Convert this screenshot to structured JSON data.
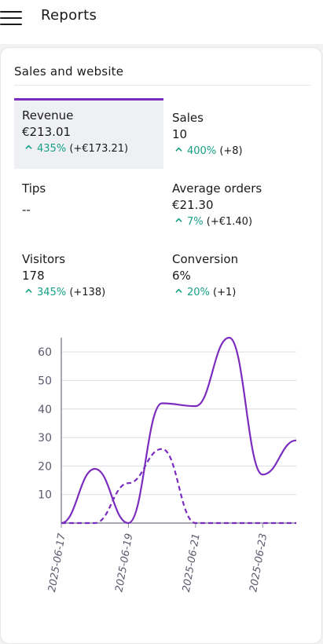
{
  "header": {
    "title": "Reports"
  },
  "card": {
    "title": "Sales and website"
  },
  "kpis": [
    {
      "label": "Revenue",
      "value": "€213.01",
      "change_pct": "435%",
      "change_abs": "(+€173.21)",
      "selected": true
    },
    {
      "label": "Sales",
      "value": "10",
      "change_pct": "400%",
      "change_abs": "(+8)",
      "selected": false
    },
    {
      "label": "Tips",
      "value": "--",
      "change_pct": "",
      "change_abs": "",
      "selected": false
    },
    {
      "label": "Average orders",
      "value": "€21.30",
      "change_pct": "7%",
      "change_abs": "(+€1.40)",
      "selected": false
    },
    {
      "label": "Visitors",
      "value": "178",
      "change_pct": "345%",
      "change_abs": "(+138)",
      "selected": false
    },
    {
      "label": "Conversion",
      "value": "6%",
      "change_pct": "20%",
      "change_abs": "(+1)",
      "selected": false
    }
  ],
  "colors": {
    "accent": "#7b2cbf",
    "positive": "#16a085",
    "grid": "#dcdce4",
    "axis": "#5a5a6e"
  },
  "chart_data": {
    "type": "line",
    "x": [
      "2025-06-17",
      "2025-06-18",
      "2025-06-19",
      "2025-06-20",
      "2025-06-21",
      "2025-06-22",
      "2025-06-23",
      "2025-06-24"
    ],
    "x_tick_labels": [
      "2025-06-17",
      "2025-06-19",
      "2025-06-21",
      "2025-06-23"
    ],
    "series": [
      {
        "style": "solid",
        "values": [
          0,
          19,
          0,
          42,
          41,
          65,
          17,
          29
        ]
      },
      {
        "style": "dashed",
        "values": [
          0,
          0,
          14,
          26,
          0,
          0,
          0,
          0
        ]
      }
    ],
    "ylim": [
      0,
      65
    ],
    "y_ticks": [
      10,
      20,
      30,
      40,
      50,
      60
    ],
    "grid": true
  }
}
